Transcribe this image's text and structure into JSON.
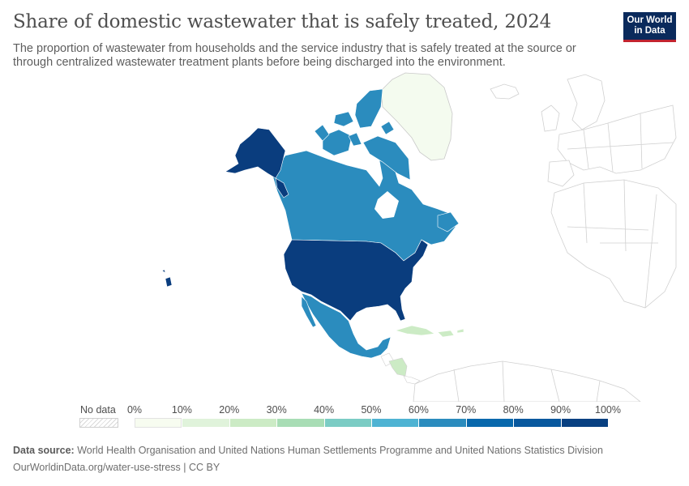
{
  "header": {
    "title": "Share of domestic wastewater that is safely treated, 2024",
    "subtitle": "The proportion of wastewater from households and the service industry that is safely treated at the source or through centralized wastewater treatment plants before being discharged into the environment.",
    "logo_line1": "Our World",
    "logo_line2": "in Data"
  },
  "legend": {
    "no_data_label": "No data",
    "ticks": [
      "0%",
      "10%",
      "20%",
      "30%",
      "40%",
      "50%",
      "60%",
      "70%",
      "80%",
      "90%",
      "100%"
    ],
    "bins": [
      "#f7fcf0",
      "#e0f3db",
      "#ccebc5",
      "#a8ddb5",
      "#7bccc4",
      "#4eb3d3",
      "#2b8cbe",
      "#0868ac",
      "#08589e",
      "#084081"
    ]
  },
  "colors": {
    "alaska_usa": "#0a3d7e",
    "canada": "#2b8cbe",
    "mexico": "#2b8cbe",
    "greenland": "#f4fbef",
    "caribbean": "#ccebc5",
    "central_america": "#ccebc5",
    "no_data_outline": "#cfcfcf"
  },
  "footer": {
    "source_label": "Data source:",
    "source_text": "World Health Organisation and United Nations Human Settlements Programme and United Nations Statistics Division",
    "url": "OurWorldinData.org/water-use-stress | CC BY"
  }
}
